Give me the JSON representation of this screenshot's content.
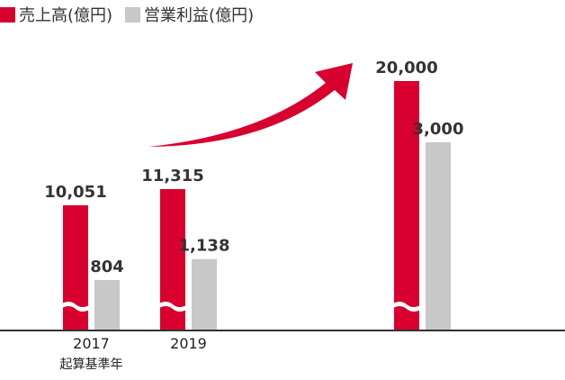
{
  "legend": {
    "sales_label": "売上高(億円)",
    "profit_label": "営業利益(億円)"
  },
  "colors": {
    "sales": "#d7002f",
    "profit": "#c8c8c8",
    "arrow": "#d7002f",
    "axis": "#333333"
  },
  "chart_data": {
    "type": "bar",
    "categories": [
      "2017",
      "2019",
      ""
    ],
    "category_sublabels": [
      "起算基準年",
      "",
      ""
    ],
    "series": [
      {
        "name": "売上高(億円)",
        "values": [
          10051,
          11315,
          20000
        ],
        "labels": [
          "10,051",
          "11,315",
          "20,000"
        ]
      },
      {
        "name": "営業利益(億円)",
        "values": [
          804,
          1138,
          3000
        ],
        "labels": [
          "804",
          "1,138",
          "3,000"
        ]
      }
    ],
    "axis_break_on_sales": true,
    "trend_arrow": true,
    "grid": false
  }
}
